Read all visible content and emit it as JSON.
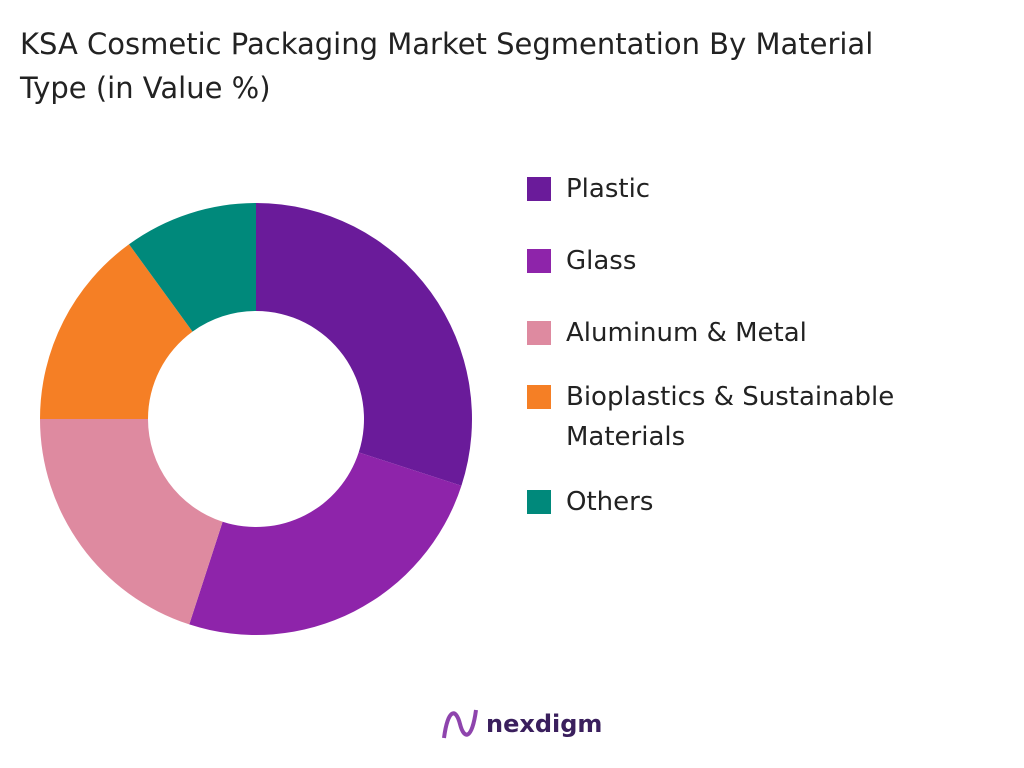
{
  "chart_data": {
    "type": "donut",
    "title": "KSA Cosmetic Packaging Market Segmentation By Material Type (in Value %)",
    "categories": [
      "Plastic",
      "Glass",
      "Aluminum & Metal",
      "Bioplastics & Sustainable Materials",
      "Others"
    ],
    "values": [
      30,
      25,
      20,
      15,
      10
    ],
    "colors": [
      "#6a1b9a",
      "#8e24aa",
      "#de8aa0",
      "#f57f25",
      "#00897b"
    ]
  },
  "logo": {
    "text": "nexdigm"
  }
}
